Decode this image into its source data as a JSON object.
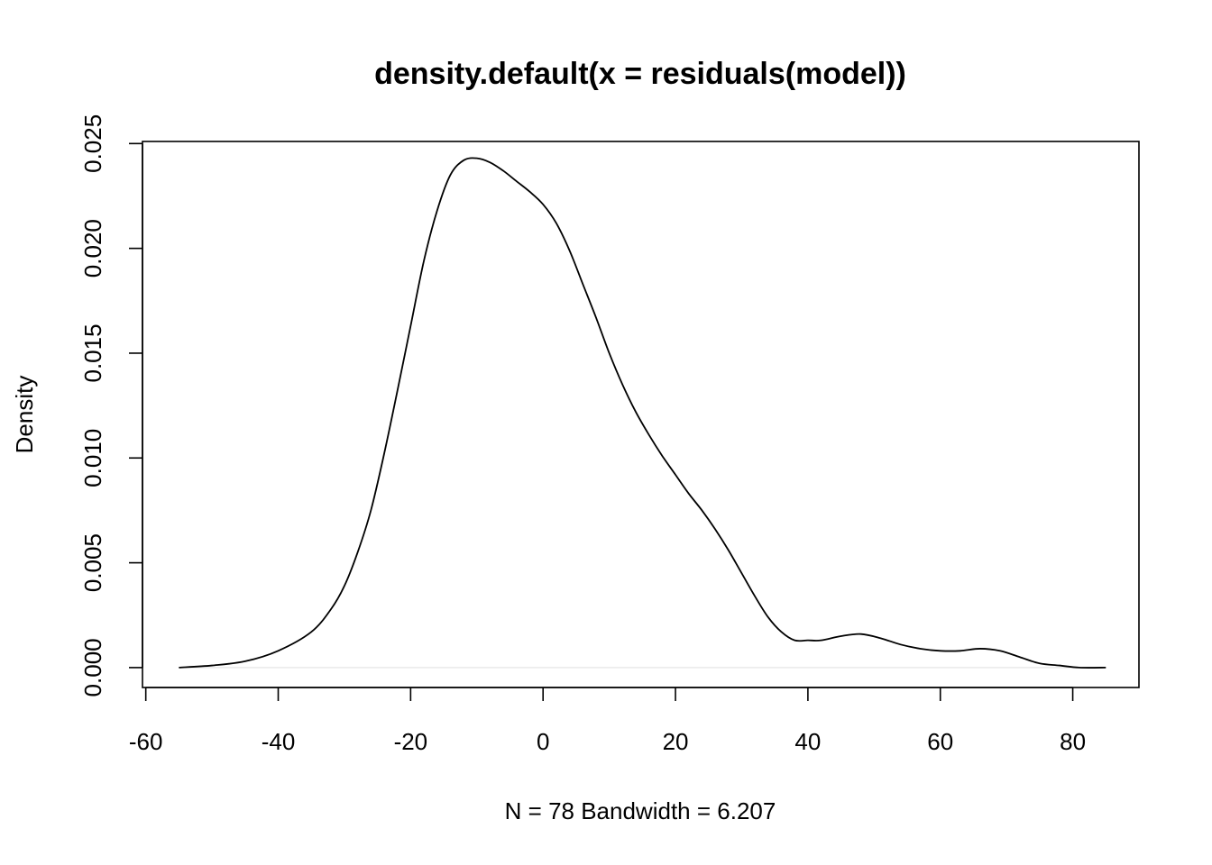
{
  "chart_data": {
    "type": "line",
    "title": "density.default(x = residuals(model))",
    "xlabel": "N = 78   Bandwidth = 6.207",
    "ylabel": "Density",
    "xlim": [
      -60.5,
      90
    ],
    "ylim": [
      -0.00095,
      0.0251
    ],
    "x_ticks": [
      -60,
      -40,
      -20,
      0,
      20,
      40,
      60,
      80
    ],
    "x_tick_labels": [
      "-60",
      "-40",
      "-20",
      "0",
      "20",
      "40",
      "60",
      "80"
    ],
    "y_ticks": [
      0,
      0.005,
      0.01,
      0.015,
      0.02,
      0.025
    ],
    "y_tick_labels": [
      "0.000",
      "0.005",
      "0.010",
      "0.015",
      "0.020",
      "0.025"
    ],
    "grid": false,
    "legend": "none",
    "series": [
      {
        "x": [
          -55,
          -50,
          -45,
          -40,
          -35,
          -32,
          -30,
          -28,
          -26,
          -24,
          -22,
          -20,
          -18,
          -16,
          -14,
          -12,
          -10,
          -8,
          -6,
          -4,
          -2,
          0,
          2,
          4,
          6,
          8,
          10,
          12,
          14,
          16,
          18,
          20,
          22,
          24,
          26,
          28,
          30,
          32,
          34,
          36,
          38,
          40,
          42,
          45,
          48,
          51,
          54,
          57,
          60,
          63,
          66,
          69,
          72,
          75,
          78,
          81,
          85
        ],
        "y": [
          0.0,
          0.0001,
          0.0003,
          0.0008,
          0.0017,
          0.0028,
          0.0039,
          0.0055,
          0.0075,
          0.0102,
          0.0132,
          0.0163,
          0.0194,
          0.0218,
          0.0235,
          0.0242,
          0.0243,
          0.0241,
          0.0237,
          0.0232,
          0.0227,
          0.0221,
          0.0212,
          0.0199,
          0.0183,
          0.0167,
          0.015,
          0.0135,
          0.0122,
          0.0111,
          0.0101,
          0.0092,
          0.0083,
          0.0075,
          0.0066,
          0.0056,
          0.0045,
          0.0034,
          0.0024,
          0.0017,
          0.0013,
          0.0013,
          0.0013,
          0.0015,
          0.0016,
          0.0014,
          0.0011,
          0.0009,
          0.0008,
          0.0008,
          0.0009,
          0.0008,
          0.0005,
          0.0002,
          0.0001,
          0.0,
          0.0
        ]
      }
    ]
  }
}
